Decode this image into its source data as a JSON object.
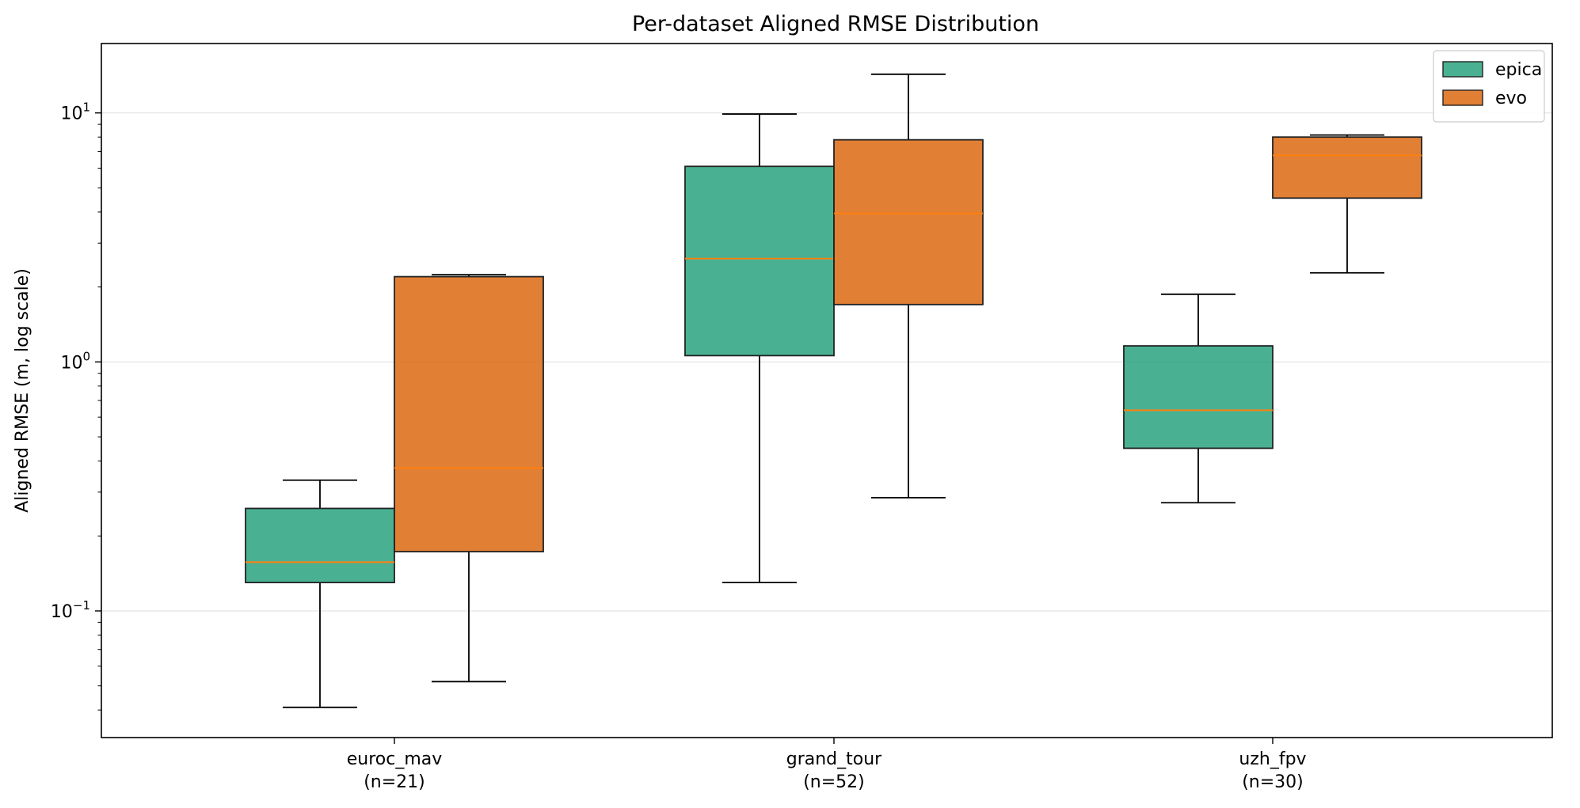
{
  "chart_data": {
    "type": "box",
    "title": "Per-dataset Aligned RMSE Distribution",
    "xlabel": "",
    "ylabel": "Aligned RMSE (m, log scale)",
    "yscale": "log",
    "ylim": [
      0.031,
      19
    ],
    "y_ticks": [
      {
        "value": 0.1,
        "base": "10",
        "exp": "−1"
      },
      {
        "value": 1,
        "base": "10",
        "exp": "0"
      },
      {
        "value": 10,
        "base": "10",
        "exp": "1"
      }
    ],
    "grid": "y-major",
    "legend_placement": "top-right",
    "categories": [
      {
        "name": "euroc_mav",
        "count": "(n=21)"
      },
      {
        "name": "grand_tour",
        "count": "(n=52)"
      },
      {
        "name": "uzh_fpv",
        "count": "(n=30)"
      }
    ],
    "series": [
      {
        "name": "epica",
        "color": "#1b9e77",
        "boxes": [
          {
            "whislo": 0.041,
            "q1": 0.13,
            "median": 0.157,
            "q3": 0.258,
            "whishi": 0.335
          },
          {
            "whislo": 0.13,
            "q1": 1.06,
            "median": 2.6,
            "q3": 6.1,
            "whishi": 9.9
          },
          {
            "whislo": 0.272,
            "q1": 0.45,
            "median": 0.64,
            "q3": 1.16,
            "whishi": 1.87
          }
        ]
      },
      {
        "name": "evo",
        "color": "#d95f02",
        "boxes": [
          {
            "whislo": 0.052,
            "q1": 0.173,
            "median": 0.375,
            "q3": 2.2,
            "whishi": 2.24
          },
          {
            "whislo": 0.285,
            "q1": 1.7,
            "median": 3.95,
            "q3": 7.8,
            "whishi": 14.3
          },
          {
            "whislo": 2.28,
            "q1": 4.55,
            "median": 6.75,
            "q3": 8.0,
            "whishi": 8.15
          }
        ]
      }
    ],
    "median_color": "#ff7f0e"
  }
}
